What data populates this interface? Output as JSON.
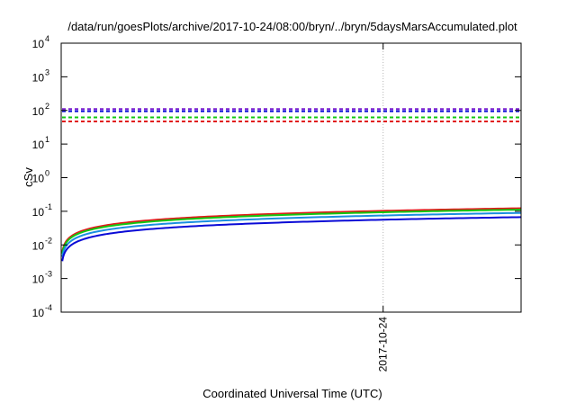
{
  "chart_data": {
    "type": "line",
    "title": "/data/run/goesPlots/archive/2017-10-24/08:00/bryn/../bryn/5daysMarsAccumulated.plot",
    "xlabel": "Coordinated Universal Time (UTC)",
    "ylabel": "cSv",
    "yscale": "log",
    "ylim": [
      0.0001,
      10000
    ],
    "yticks": [
      {
        "value": 0.0001,
        "base": "10",
        "exp": "-4"
      },
      {
        "value": 0.001,
        "base": "10",
        "exp": "-3"
      },
      {
        "value": 0.01,
        "base": "10",
        "exp": "-2"
      },
      {
        "value": 0.1,
        "base": "10",
        "exp": "-1"
      },
      {
        "value": 1,
        "base": "10",
        "exp": "0"
      },
      {
        "value": 10,
        "base": "10",
        "exp": "1"
      },
      {
        "value": 100,
        "base": "10",
        "exp": "2"
      },
      {
        "value": 1000,
        "base": "10",
        "exp": "3"
      },
      {
        "value": 10000,
        "base": "10",
        "exp": "4"
      }
    ],
    "xlim": [
      0,
      5
    ],
    "xticks": [
      {
        "value": 3.5,
        "label": "2017-10-24"
      }
    ],
    "grid": "x-major-tick-only",
    "reference_lines": [
      {
        "color": "#7a1fd0",
        "y": 110
      },
      {
        "color": "#0a0ad6",
        "y": 95
      },
      {
        "color": "#12c812",
        "y": 62
      },
      {
        "color": "#e11a1a",
        "y": 47
      }
    ],
    "series": [
      {
        "color": "#e11a1a",
        "a": 0.055,
        "p": 0.5
      },
      {
        "color": "#12c812",
        "a": 0.05,
        "p": 0.5
      },
      {
        "color": "#1a8fe0",
        "a": 0.04,
        "p": 0.5
      },
      {
        "color": "#0a0ad6",
        "a": 0.03,
        "p": 0.5
      }
    ]
  }
}
